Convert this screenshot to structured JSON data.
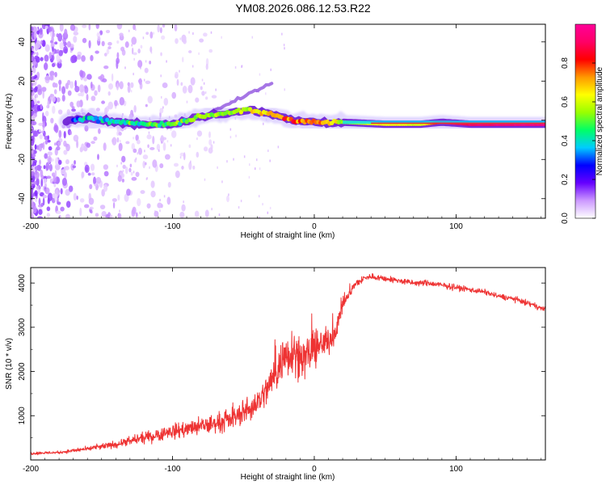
{
  "title": "YM08.2026.086.12.53.R22",
  "colors": {
    "snr_line": "#ee3333",
    "background_wash": "#c9b8ff",
    "event_base": "#6a1bd4",
    "event_core": "#00b8ff",
    "line_peak": "#ff2020"
  },
  "chart_data": [
    {
      "type": "heatmap",
      "panel": "spectrogram",
      "xlabel": "Height of straight line (km)",
      "ylabel": "Frequency (Hz)",
      "xlim": [
        -200,
        163
      ],
      "ylim": [
        -50,
        49
      ],
      "xticks": [
        -200,
        -100,
        0,
        100
      ],
      "xtick_labels": [
        "-200",
        "-100",
        "0",
        "100"
      ],
      "yticks": [
        -40,
        -20,
        0,
        20,
        40
      ],
      "ytick_labels": [
        "-40",
        "-20",
        "0",
        "20",
        "40"
      ],
      "ridge_points": [
        {
          "x": -170,
          "freq": 0,
          "amp": 0.3
        },
        {
          "x": -160,
          "freq": 1,
          "amp": 0.35
        },
        {
          "x": -140,
          "freq": -1,
          "amp": 0.4
        },
        {
          "x": -120,
          "freq": -2,
          "amp": 0.45
        },
        {
          "x": -100,
          "freq": -2,
          "amp": 0.5
        },
        {
          "x": -80,
          "freq": 2,
          "amp": 0.55
        },
        {
          "x": -60,
          "freq": 4,
          "amp": 0.55
        },
        {
          "x": -45,
          "freq": 5,
          "amp": 0.6
        },
        {
          "x": -30,
          "freq": 3,
          "amp": 0.7
        },
        {
          "x": -15,
          "freq": 0,
          "amp": 0.8
        },
        {
          "x": 0,
          "freq": -1,
          "amp": 0.75
        },
        {
          "x": 20,
          "freq": -1,
          "amp": 0.55
        },
        {
          "x": 50,
          "freq": -2,
          "amp": 0.65
        },
        {
          "x": 75,
          "freq": -2,
          "amp": 0.6
        },
        {
          "x": 90,
          "freq": -1,
          "amp": 0.9
        },
        {
          "x": 110,
          "freq": -2,
          "amp": 0.9
        },
        {
          "x": 163,
          "freq": -2,
          "amp": 0.95
        }
      ],
      "colorbar": {
        "label": "Normalized spectral amplitude",
        "range": [
          0,
          1
        ],
        "ticks": [
          0.0,
          0.2,
          0.4,
          0.6,
          0.8
        ],
        "tick_labels": [
          "0.0",
          "0.2",
          "0.4",
          "0.6",
          "0.8"
        ],
        "stops": [
          "#ffffff",
          "#cc99ff",
          "#6600ff",
          "#0000ff",
          "#00ccff",
          "#00ff66",
          "#99ff00",
          "#ffff00",
          "#ff9900",
          "#ff0000",
          "#ff0066",
          "#ff0099"
        ]
      }
    },
    {
      "type": "line",
      "panel": "snr",
      "xlabel": "Height of straight line (km)",
      "ylabel": "SNR (10 * v/v)",
      "xlim": [
        -200,
        163
      ],
      "ylim": [
        0,
        4350
      ],
      "xticks": [
        -200,
        -100,
        0,
        100
      ],
      "xtick_labels": [
        "-200",
        "-100",
        "0",
        "100"
      ],
      "yticks": [
        1000,
        2000,
        3000,
        4000
      ],
      "ytick_labels": [
        "1000",
        "2000",
        "3000",
        "4000"
      ],
      "series": [
        {
          "name": "SNR",
          "x": [
            -200,
            -180,
            -160,
            -140,
            -120,
            -100,
            -80,
            -60,
            -45,
            -35,
            -25,
            -20,
            -15,
            -10,
            -5,
            0,
            5,
            10,
            15,
            20,
            25,
            30,
            35,
            40,
            50,
            60,
            70,
            80,
            90,
            100,
            110,
            120,
            130,
            140,
            150,
            163
          ],
          "y": [
            150,
            170,
            250,
            350,
            500,
            650,
            750,
            900,
            1150,
            1500,
            2100,
            2400,
            2500,
            2300,
            2350,
            2500,
            2600,
            2700,
            2900,
            3500,
            3800,
            4000,
            4100,
            4150,
            4100,
            4050,
            4000,
            4000,
            3950,
            3900,
            3850,
            3800,
            3700,
            3650,
            3550,
            3400
          ],
          "noise": [
            50,
            50,
            80,
            120,
            180,
            250,
            300,
            350,
            400,
            500,
            700,
            800,
            800,
            700,
            650,
            600,
            500,
            450,
            350,
            250,
            200,
            150,
            120,
            100,
            100,
            100,
            100,
            100,
            100,
            100,
            90,
            90,
            90,
            90,
            90,
            90
          ]
        }
      ]
    }
  ]
}
